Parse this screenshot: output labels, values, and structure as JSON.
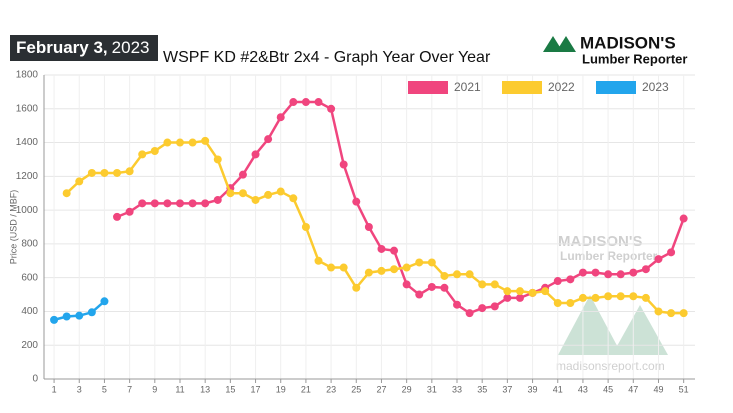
{
  "date_label": {
    "day": "February 3,",
    "year": "2023"
  },
  "logo": {
    "name": "MADISON'S",
    "tagline": "Lumber Reporter"
  },
  "watermark": {
    "name": "MADISON'S",
    "tagline": "Lumber Reporter",
    "url": "madisonsreport.com"
  },
  "chart_data": {
    "type": "line",
    "title": "WSPF KD #2&Btr 2x4 - Graph Year Over Year",
    "y_label": "Price (USD / MBF)",
    "x": [
      1,
      2,
      3,
      4,
      5,
      6,
      7,
      8,
      9,
      10,
      11,
      12,
      13,
      14,
      15,
      16,
      17,
      18,
      19,
      20,
      21,
      22,
      23,
      24,
      25,
      26,
      27,
      28,
      29,
      30,
      31,
      32,
      33,
      34,
      35,
      36,
      37,
      38,
      39,
      40,
      41,
      42,
      43,
      44,
      45,
      46,
      47,
      48,
      49,
      50,
      51
    ],
    "xlim": [
      0.2,
      51.9
    ],
    "xticks": [
      1,
      3,
      5,
      7,
      9,
      11,
      13,
      15,
      17,
      19,
      21,
      23,
      25,
      27,
      29,
      31,
      33,
      35,
      37,
      39,
      41,
      43,
      45,
      47,
      49,
      51
    ],
    "ylim": [
      0,
      1800
    ],
    "yticks": [
      0,
      200,
      400,
      600,
      800,
      1000,
      1200,
      1400,
      1600,
      1800
    ],
    "grid": true,
    "legend": "top-right",
    "series": [
      {
        "name": "2021",
        "color": "#f0457e",
        "values": [
          null,
          null,
          null,
          null,
          null,
          960,
          990,
          1040,
          1040,
          1040,
          1040,
          1040,
          1040,
          1060,
          1130,
          1210,
          1330,
          1420,
          1550,
          1640,
          1640,
          1640,
          1600,
          1270,
          1050,
          900,
          770,
          760,
          560,
          500,
          545,
          540,
          440,
          390,
          420,
          430,
          480,
          480,
          510,
          540,
          580,
          590,
          630,
          630,
          620,
          620,
          630,
          650,
          710,
          750,
          950
        ]
      },
      {
        "name": "2022",
        "color": "#fccb2f",
        "values": [
          null,
          1100,
          1170,
          1220,
          1220,
          1220,
          1230,
          1330,
          1350,
          1400,
          1400,
          1400,
          1410,
          1300,
          1100,
          1100,
          1060,
          1090,
          1110,
          1070,
          900,
          700,
          660,
          660,
          540,
          630,
          640,
          650,
          660,
          690,
          690,
          610,
          620,
          620,
          560,
          560,
          520,
          520,
          510,
          520,
          450,
          450,
          480,
          480,
          490,
          490,
          490,
          480,
          400,
          390,
          390
        ]
      },
      {
        "name": "2023",
        "color": "#22a5ec",
        "values": [
          350,
          370,
          375,
          395,
          460,
          null,
          null,
          null,
          null,
          null,
          null,
          null,
          null,
          null,
          null,
          null,
          null,
          null,
          null,
          null,
          null,
          null,
          null,
          null,
          null,
          null,
          null,
          null,
          null,
          null,
          null,
          null,
          null,
          null,
          null,
          null,
          null,
          null,
          null,
          null,
          null,
          null,
          null,
          null,
          null,
          null,
          null,
          null,
          null,
          null,
          null
        ]
      }
    ]
  }
}
